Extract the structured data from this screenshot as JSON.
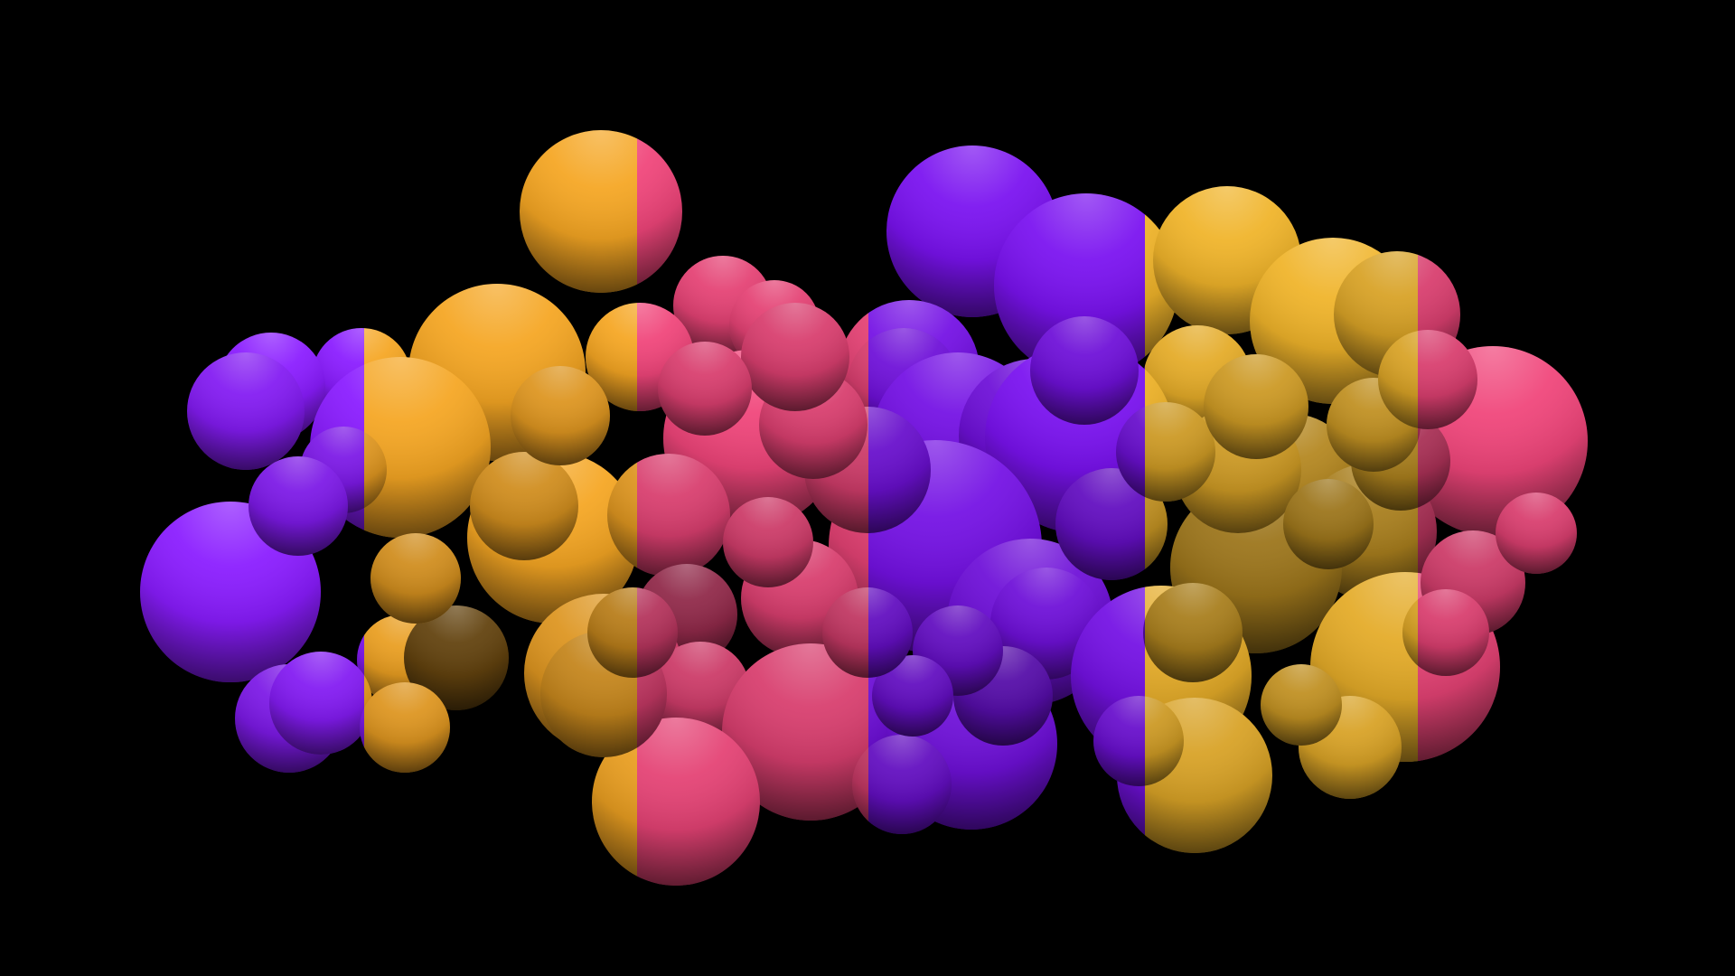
{
  "scene": {
    "subject": "sphere-cluster",
    "background_color": "#000000",
    "band_colors": [
      "#8a1cff",
      "#f5a623",
      "#f0457a",
      "#7a12f0",
      "#f0b42a",
      "#f0457a"
    ],
    "shadow_color": "#000000",
    "sphere_count": 78
  }
}
